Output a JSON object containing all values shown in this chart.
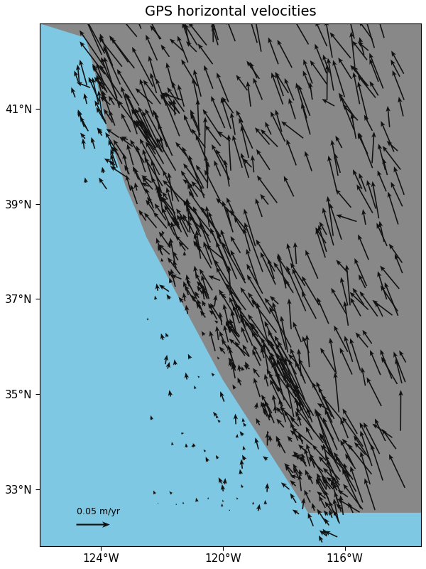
{
  "title": "GPS horizontal velocities",
  "xlim": [
    -126.0,
    -113.5
  ],
  "ylim": [
    31.8,
    42.8
  ],
  "xticks": [
    -124,
    -120,
    -116
  ],
  "yticks": [
    33,
    35,
    37,
    39,
    41
  ],
  "ocean_color": "#7ec8e3",
  "land_color": "#888888",
  "arrow_color": "#111111",
  "scale_label": "0.05 m/yr",
  "scale_value": 0.05,
  "scale_pos_x": -124.8,
  "scale_pos_y": 32.25,
  "title_fontsize": 14,
  "tick_fontsize": 11,
  "background_color": "#ffffff",
  "scale_deg_per_myr": 22.0
}
